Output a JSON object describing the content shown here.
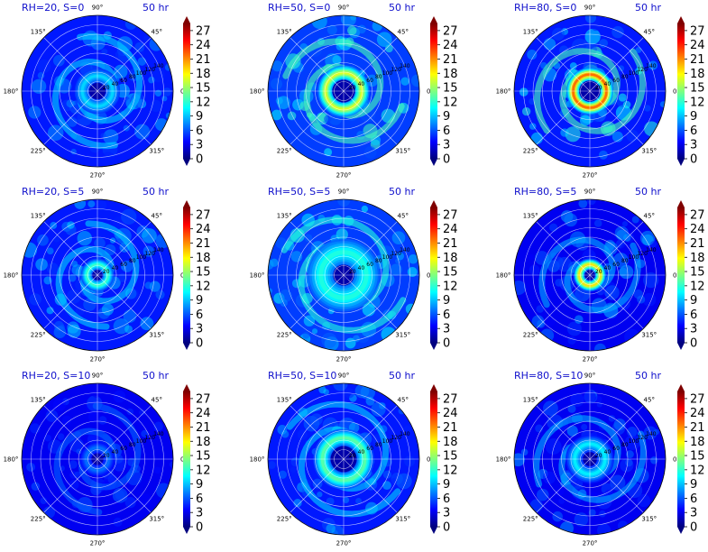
{
  "figure": {
    "colorbar_ticks": [
      "0",
      "3",
      "6",
      "9",
      "12",
      "15",
      "18",
      "21",
      "24",
      "27"
    ],
    "colormap": [
      "#00007f",
      "#0000ff",
      "#007fff",
      "#00ffff",
      "#7fff7f",
      "#ffff00",
      "#ff7f00",
      "#ff0000",
      "#7f0000"
    ],
    "angle_labels": [
      "90°",
      "45°",
      "0°",
      "315°",
      "270°",
      "225°",
      "180°",
      "135°"
    ],
    "radial_labels": [
      "20",
      "40",
      "60",
      "80",
      "100",
      "120",
      "140"
    ]
  },
  "chart_data": [
    {
      "type": "heatmap",
      "projection": "polar",
      "title_left": "RH=20, S=0",
      "title_right": "50 hr",
      "clim": [
        0,
        27
      ],
      "ring_center": 0.2,
      "ring_width": 0.1,
      "ring_peak": 10,
      "background_level": 4,
      "arm_level": 9
    },
    {
      "type": "heatmap",
      "projection": "polar",
      "title_left": "RH=50, S=0",
      "title_right": "50 hr",
      "clim": [
        0,
        27
      ],
      "ring_center": 0.24,
      "ring_width": 0.1,
      "ring_peak": 18,
      "background_level": 5,
      "arm_level": 12
    },
    {
      "type": "heatmap",
      "projection": "polar",
      "title_left": "RH=80, S=0",
      "title_right": "50 hr",
      "clim": [
        0,
        27
      ],
      "ring_center": 0.22,
      "ring_width": 0.09,
      "ring_peak": 24,
      "background_level": 4,
      "arm_level": 12
    },
    {
      "type": "heatmap",
      "projection": "polar",
      "title_left": "RH=20, S=5",
      "title_right": "50 hr",
      "clim": [
        0,
        27
      ],
      "ring_center": 0.14,
      "ring_width": 0.08,
      "ring_peak": 13,
      "background_level": 4,
      "arm_level": 9
    },
    {
      "type": "heatmap",
      "projection": "polar",
      "title_left": "RH=50, S=5",
      "title_right": "50 hr",
      "clim": [
        0,
        27
      ],
      "ring_center": 0.3,
      "ring_width": 0.18,
      "ring_peak": 12,
      "background_level": 5,
      "arm_level": 11
    },
    {
      "type": "heatmap",
      "projection": "polar",
      "title_left": "RH=80, S=5",
      "title_right": "50 hr",
      "clim": [
        0,
        27
      ],
      "ring_center": 0.14,
      "ring_width": 0.08,
      "ring_peak": 20,
      "background_level": 3,
      "arm_level": 8
    },
    {
      "type": "heatmap",
      "projection": "polar",
      "title_left": "RH=20, S=10",
      "title_right": "50 hr",
      "clim": [
        0,
        27
      ],
      "ring_center": 0.15,
      "ring_width": 0.08,
      "ring_peak": 7,
      "background_level": 3,
      "arm_level": 6
    },
    {
      "type": "heatmap",
      "projection": "polar",
      "title_left": "RH=50, S=10",
      "title_right": "50 hr",
      "clim": [
        0,
        27
      ],
      "ring_center": 0.28,
      "ring_width": 0.12,
      "ring_peak": 14,
      "background_level": 4,
      "arm_level": 9
    },
    {
      "type": "heatmap",
      "projection": "polar",
      "title_left": "RH=80, S=10",
      "title_right": "50 hr",
      "clim": [
        0,
        27
      ],
      "ring_center": 0.2,
      "ring_width": 0.12,
      "ring_peak": 11,
      "background_level": 3,
      "arm_level": 8
    }
  ]
}
